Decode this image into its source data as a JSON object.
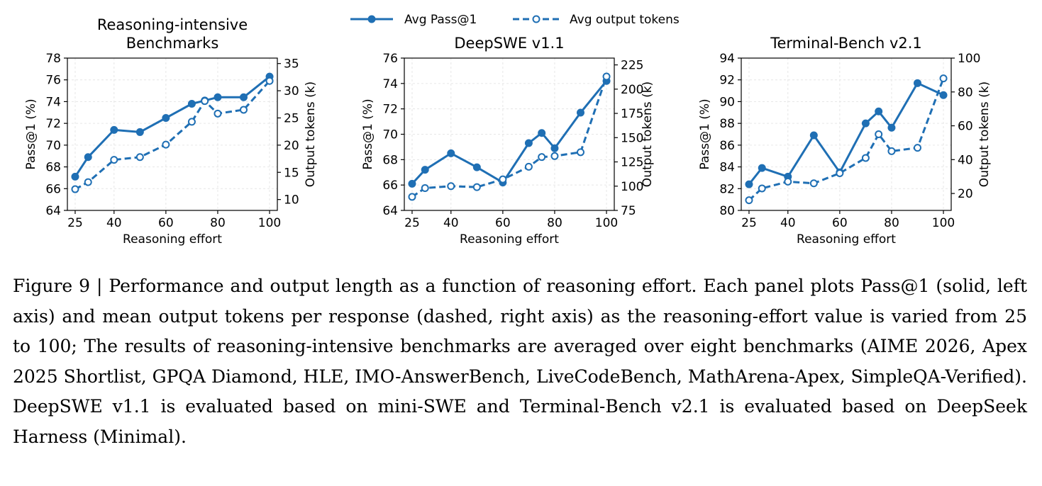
{
  "legend": {
    "items": [
      {
        "label": "Avg Pass@1",
        "style": "solid",
        "marker": "filled-circle"
      },
      {
        "label": "Avg output tokens",
        "style": "dashed",
        "marker": "open-circle"
      }
    ],
    "placement": "top-center"
  },
  "colors": {
    "series": "#1f6fb4",
    "grid": "#e6e6e6"
  },
  "caption": {
    "label": "Figure 9 | ",
    "text": "Performance and output length as a function of reasoning effort. Each panel plots Pass@1 (solid, left axis) and mean output tokens per response (dashed, right axis) as the reasoning-effort value is varied from 25 to 100; The results of reasoning-intensive benchmarks are averaged over eight benchmarks (AIME 2026, Apex 2025 Shortlist, GPQA Diamond, HLE, IMO-AnswerBench, LiveCodeBench, MathArena-Apex, SimpleQA-Verified). DeepSWE v1.1 is evaluated based on mini-SWE and Terminal-Bench v2.1 is evaluated based on DeepSeek Harness (Minimal)."
  },
  "chart_data": [
    {
      "type": "line",
      "title": [
        "Reasoning-intensive",
        "Benchmarks"
      ],
      "xlabel": "Reasoning effort",
      "ylabel": "Pass@1 (%)",
      "y2label": "Output tokens (k)",
      "x": [
        25,
        30,
        40,
        50,
        60,
        70,
        75,
        80,
        90,
        100
      ],
      "xticks": [
        25,
        40,
        60,
        80,
        100
      ],
      "xlim": [
        22,
        103
      ],
      "ylim": [
        64,
        78
      ],
      "yticks": [
        64,
        66,
        68,
        70,
        72,
        74,
        76,
        78
      ],
      "y2lim": [
        8,
        36
      ],
      "y2ticks": [
        10,
        15,
        20,
        25,
        30,
        35
      ],
      "grid": true,
      "series": [
        {
          "name": "Avg Pass@1",
          "axis": "left",
          "values": [
            67.1,
            68.9,
            71.4,
            71.2,
            72.5,
            73.8,
            74.1,
            74.4,
            74.4,
            76.3
          ]
        },
        {
          "name": "Avg output tokens",
          "axis": "right",
          "values": [
            11.9,
            13.2,
            17.3,
            17.8,
            20.1,
            24.3,
            28.1,
            25.8,
            26.5,
            31.8
          ]
        }
      ]
    },
    {
      "type": "line",
      "title": [
        "DeepSWE v1.1"
      ],
      "xlabel": "Reasoning effort",
      "ylabel": "Pass@1 (%)",
      "y2label": "Output tokens (k)",
      "x": [
        25,
        30,
        40,
        50,
        60,
        70,
        75,
        80,
        90,
        100
      ],
      "xticks": [
        25,
        40,
        60,
        80,
        100
      ],
      "xlim": [
        22,
        103
      ],
      "ylim": [
        64,
        76
      ],
      "yticks": [
        64,
        66,
        68,
        70,
        72,
        74,
        76
      ],
      "y2lim": [
        75,
        232
      ],
      "y2ticks": [
        75,
        100,
        125,
        150,
        175,
        200,
        225
      ],
      "grid": true,
      "series": [
        {
          "name": "Avg Pass@1",
          "axis": "left",
          "values": [
            66.1,
            67.2,
            68.5,
            67.4,
            66.2,
            69.3,
            70.1,
            68.9,
            71.7,
            74.2
          ]
        },
        {
          "name": "Avg output tokens",
          "axis": "right",
          "values": [
            89,
            98,
            100,
            99,
            107,
            120,
            130,
            131,
            135,
            213
          ]
        }
      ]
    },
    {
      "type": "line",
      "title": [
        "Terminal-Bench v2.1"
      ],
      "xlabel": "Reasoning effort",
      "ylabel": "Pass@1 (%)",
      "y2label": "Output tokens (k)",
      "x": [
        25,
        30,
        40,
        50,
        60,
        70,
        75,
        80,
        90,
        100
      ],
      "xticks": [
        25,
        40,
        60,
        80,
        100
      ],
      "xlim": [
        22,
        103
      ],
      "ylim": [
        80,
        94
      ],
      "yticks": [
        80,
        82,
        84,
        86,
        88,
        90,
        92,
        94
      ],
      "y2lim": [
        10,
        100
      ],
      "y2ticks": [
        20,
        40,
        60,
        80,
        100
      ],
      "grid": true,
      "series": [
        {
          "name": "Avg Pass@1",
          "axis": "left",
          "values": [
            82.4,
            83.9,
            83.1,
            86.9,
            83.5,
            88.0,
            89.1,
            87.6,
            91.7,
            90.6
          ]
        },
        {
          "name": "Avg output tokens",
          "axis": "right",
          "values": [
            16,
            23,
            27,
            26,
            32,
            41,
            55,
            45,
            47,
            88
          ]
        }
      ]
    }
  ]
}
